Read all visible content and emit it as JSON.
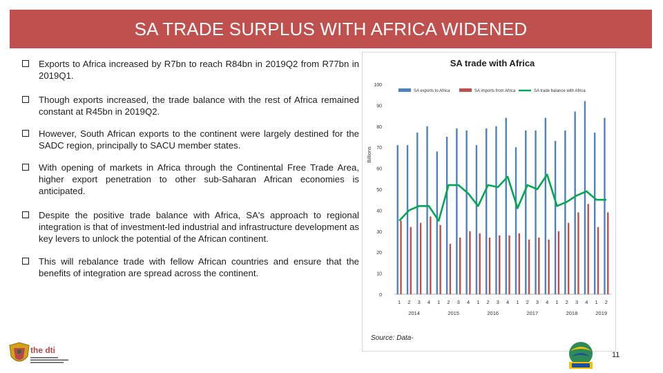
{
  "slide": {
    "title": "SA TRADE SURPLUS WITH AFRICA WIDENED",
    "page_number": "11",
    "source": "Source: Data-"
  },
  "bullets": [
    "Exports to Africa increased by R7bn to reach R84bn in 2019Q2 from R77bn in 2019Q1.",
    "Though exports increased, the trade balance with the rest of Africa remained constant at R45bn in 2019Q2.",
    "However, South African exports to the continent were largely destined for the SADC region, principally to SACU member states.",
    "With opening of markets in Africa through the Continental Free Trade Area, higher export penetration to other sub-Saharan African economies is anticipated.",
    "Despite the positive trade balance with Africa, SA's approach to regional integration is that of investment-led industrial and infrastructure development as key levers to unlock the potential of the African continent.",
    "This will rebalance trade with fellow African countries and ensure that the benefits of integration are spread across the continent."
  ],
  "logos": {
    "left_brand": "the dti"
  },
  "colors": {
    "title_bg": "#c0504d",
    "exports": "#4f81bd",
    "imports": "#c0504d",
    "balance": "#00a651"
  },
  "chart_data": {
    "type": "bar",
    "title": "SA trade with Africa",
    "ylabel": "Billions",
    "xlabel": "",
    "ylim": [
      0,
      100
    ],
    "yticks": [
      0,
      10,
      20,
      30,
      40,
      50,
      60,
      70,
      80,
      90,
      100
    ],
    "quarter_labels": [
      "1",
      "2",
      "3",
      "4",
      "1",
      "2",
      "3",
      "4",
      "1",
      "2",
      "3",
      "4",
      "1",
      "2",
      "3",
      "4",
      "1",
      "2",
      "3",
      "4",
      "1",
      "2"
    ],
    "year_labels": [
      "2014",
      "2015",
      "2016",
      "2017",
      "2018",
      "2019"
    ],
    "categories": [
      "2014Q1",
      "2014Q2",
      "2014Q3",
      "2014Q4",
      "2015Q1",
      "2015Q2",
      "2015Q3",
      "2015Q4",
      "2016Q1",
      "2016Q2",
      "2016Q3",
      "2016Q4",
      "2017Q1",
      "2017Q2",
      "2017Q3",
      "2017Q4",
      "2018Q1",
      "2018Q2",
      "2018Q3",
      "2018Q4",
      "2019Q1",
      "2019Q2"
    ],
    "series": [
      {
        "name": "SA exports to Africa",
        "kind": "bar",
        "values": [
          71,
          71,
          77,
          80,
          68,
          75,
          79,
          78,
          71,
          79,
          80,
          84,
          70,
          78,
          78,
          84,
          73,
          78,
          87,
          92,
          77,
          84
        ]
      },
      {
        "name": "SA imports from Africa",
        "kind": "bar",
        "values": [
          35,
          32,
          34,
          37,
          33,
          24,
          27,
          30,
          29,
          27,
          28,
          28,
          29,
          26,
          27,
          26,
          30,
          34,
          39,
          43,
          32,
          39
        ]
      },
      {
        "name": "SA trade balance with Africa",
        "kind": "line",
        "values": [
          35,
          40,
          42,
          42,
          35,
          52,
          52,
          48,
          42,
          52,
          51,
          56,
          41,
          52,
          50,
          57,
          42,
          44,
          47,
          49,
          45,
          45
        ]
      }
    ],
    "legend": "top-right",
    "grid": false
  }
}
